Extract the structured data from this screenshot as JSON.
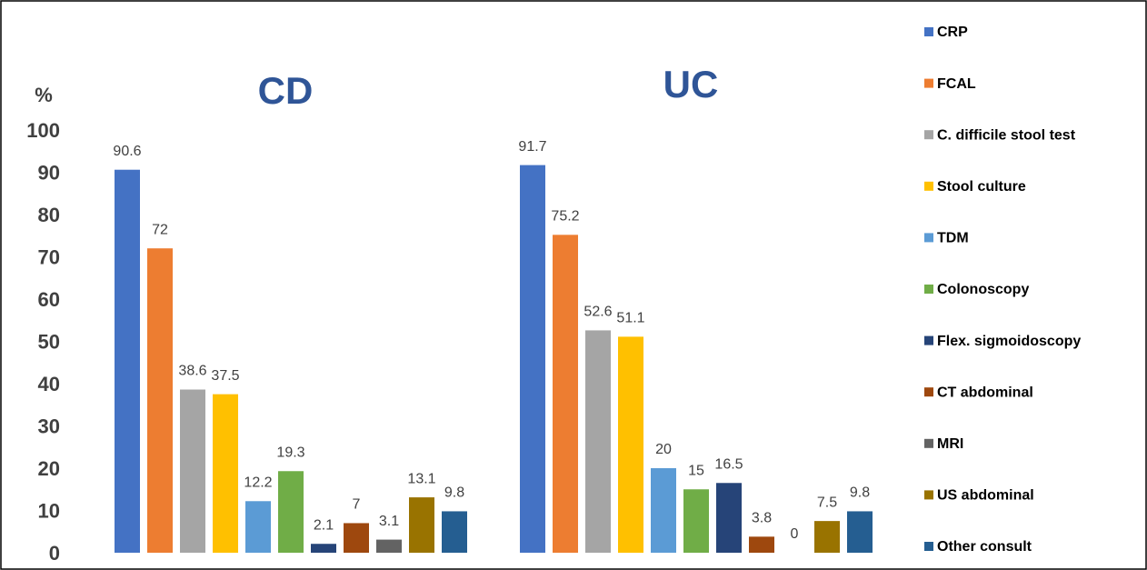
{
  "chart_data": {
    "type": "bar",
    "y_label": "%",
    "categories": [
      "CD",
      "UC"
    ],
    "series": [
      {
        "name": "CRP",
        "color": "#4472c4",
        "values": [
          90.6,
          91.7
        ]
      },
      {
        "name": "FCAL",
        "color": "#ed7d31",
        "values": [
          72,
          75.2
        ]
      },
      {
        "name": "C. difficile stool test",
        "color": "#a5a5a5",
        "values": [
          38.6,
          52.6
        ]
      },
      {
        "name": "Stool culture",
        "color": "#ffc000",
        "values": [
          37.5,
          51.1
        ]
      },
      {
        "name": "TDM",
        "color": "#5b9bd5",
        "values": [
          12.2,
          20
        ]
      },
      {
        "name": "Colonoscopy",
        "color": "#70ad47",
        "values": [
          19.3,
          15
        ]
      },
      {
        "name": "Flex. sigmoidoscopy",
        "color": "#264478",
        "values": [
          2.1,
          16.5
        ]
      },
      {
        "name": "CT abdominal",
        "color": "#9e480e",
        "values": [
          7,
          3.8
        ]
      },
      {
        "name": "MRI",
        "color": "#636363",
        "values": [
          3.1,
          0
        ]
      },
      {
        "name": "US abdominal",
        "color": "#997300",
        "values": [
          13.1,
          7.5
        ]
      },
      {
        "name": "Other consult",
        "color": "#255e91",
        "values": [
          9.8,
          9.8
        ]
      }
    ],
    "ylim": [
      0,
      100
    ],
    "yticks": [
      0,
      10,
      20,
      30,
      40,
      50,
      60,
      70,
      80,
      90,
      100
    ],
    "grid": false,
    "legend": "right"
  }
}
